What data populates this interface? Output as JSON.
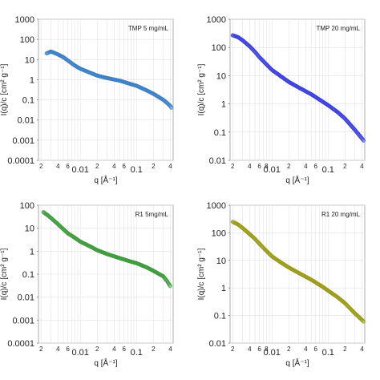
{
  "chart_data": [
    {
      "type": "scatter",
      "legend": "TMP 5 mg/mL",
      "legend_position": "top-right",
      "color": "#3d7fc4",
      "ylabel": "I(q)/c [cm² g⁻¹]",
      "xlabel": "q [Å⁻¹]",
      "xlim": [
        0.0018,
        0.45
      ],
      "ylim": [
        0.0001,
        1000
      ],
      "x_scale": "log",
      "y_scale": "log",
      "grid": true,
      "x_ticks": [
        "2",
        "4",
        "6",
        "0.01",
        "2",
        "4",
        "6",
        "0.1",
        "2",
        "4"
      ],
      "y_ticks": [
        "1000",
        "100",
        "10",
        "1",
        "0.1",
        "0.01",
        "0.001",
        "0.0001"
      ],
      "x": [
        0.0025,
        0.003,
        0.004,
        0.005,
        0.006,
        0.008,
        0.01,
        0.015,
        0.02,
        0.03,
        0.05,
        0.08,
        0.1,
        0.15,
        0.2,
        0.3,
        0.35,
        0.4,
        0.42
      ],
      "y": [
        20,
        25,
        18,
        13,
        9,
        5,
        3.5,
        2.2,
        1.6,
        1.2,
        0.9,
        0.6,
        0.5,
        0.3,
        0.2,
        0.1,
        0.07,
        0.05,
        0.04
      ]
    },
    {
      "type": "scatter",
      "legend": "TMP 20 mg/mL",
      "legend_position": "top-right",
      "color": "#3b3fd9",
      "ylabel": "I(q)/c [cm² g⁻¹]",
      "xlabel": "q [Å⁻¹]",
      "xlim": [
        0.0018,
        0.45
      ],
      "ylim": [
        0.01,
        1000
      ],
      "x_scale": "log",
      "y_scale": "log",
      "grid": true,
      "x_ticks": [
        "2",
        "4",
        "6",
        "8",
        "0.01",
        "2",
        "4",
        "6",
        "0.1",
        "2",
        "4"
      ],
      "y_ticks": [
        "1000",
        "100",
        "10",
        "1",
        "0.1",
        "0.01"
      ],
      "x": [
        0.002,
        0.0025,
        0.003,
        0.004,
        0.005,
        0.006,
        0.008,
        0.01,
        0.015,
        0.02,
        0.03,
        0.05,
        0.08,
        0.1,
        0.15,
        0.2,
        0.3,
        0.4,
        0.43
      ],
      "y": [
        270,
        230,
        180,
        110,
        70,
        45,
        25,
        16,
        9,
        6,
        3.8,
        2.2,
        1.2,
        0.9,
        0.5,
        0.3,
        0.12,
        0.06,
        0.05
      ]
    },
    {
      "type": "scatter",
      "legend": "R1 5mg/mL",
      "legend_position": "top-right",
      "color": "#3f9a3c",
      "ylabel": "I(q)/c [cm² g⁻¹]",
      "xlabel": "q [Å⁻¹]",
      "xlim": [
        0.0018,
        0.45
      ],
      "ylim": [
        0.0001,
        100
      ],
      "x_scale": "log",
      "y_scale": "log",
      "grid": true,
      "x_ticks": [
        "2",
        "4",
        "6",
        "0.01",
        "2",
        "4",
        "6",
        "0.1",
        "2",
        "4"
      ],
      "y_ticks": [
        "100",
        "10",
        "1",
        "0.1",
        "0.01",
        "0.001",
        "0.0001"
      ],
      "x": [
        0.0022,
        0.0025,
        0.003,
        0.004,
        0.005,
        0.006,
        0.008,
        0.01,
        0.015,
        0.02,
        0.03,
        0.05,
        0.08,
        0.1,
        0.15,
        0.2,
        0.3,
        0.35,
        0.4
      ],
      "y": [
        50,
        40,
        28,
        15,
        9,
        6,
        3.8,
        2.6,
        1.6,
        1.1,
        0.75,
        0.5,
        0.35,
        0.3,
        0.2,
        0.14,
        0.08,
        0.05,
        0.03
      ]
    },
    {
      "type": "scatter",
      "legend": "R1 20 mg/mL",
      "legend_position": "top-right",
      "color": "#9a9a18",
      "ylabel": "I(q)/c [cm² g⁻¹]",
      "xlabel": "q [Å⁻¹]",
      "xlim": [
        0.0018,
        0.45
      ],
      "ylim": [
        0.01,
        1000
      ],
      "x_scale": "log",
      "y_scale": "log",
      "grid": true,
      "x_ticks": [
        "2",
        "4",
        "6",
        "8",
        "0.01",
        "2",
        "4",
        "6",
        "0.1",
        "2",
        "4"
      ],
      "y_ticks": [
        "1000",
        "100",
        "10",
        "1",
        "0.1",
        "0.01"
      ],
      "x": [
        0.002,
        0.0025,
        0.003,
        0.004,
        0.005,
        0.006,
        0.008,
        0.01,
        0.015,
        0.02,
        0.03,
        0.05,
        0.08,
        0.1,
        0.15,
        0.2,
        0.3,
        0.4,
        0.43
      ],
      "y": [
        250,
        200,
        150,
        90,
        60,
        40,
        22,
        14,
        8,
        5.5,
        3.5,
        2,
        1.1,
        0.8,
        0.45,
        0.28,
        0.12,
        0.07,
        0.06
      ]
    }
  ]
}
